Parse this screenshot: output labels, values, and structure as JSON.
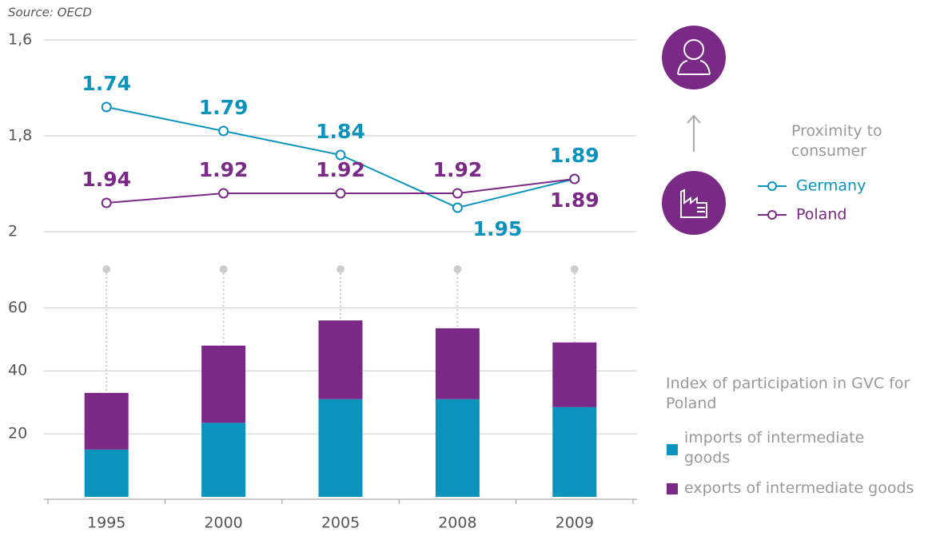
{
  "source": "Source: OECD",
  "chart_data": [
    {
      "type": "line",
      "invert_y": true,
      "legend_title": "Proximity to consumer",
      "ylim": [
        1.6,
        2
      ],
      "yticks": [
        {
          "value": 1.6,
          "label": "1,6"
        },
        {
          "value": 1.8,
          "label": "1,8"
        },
        2
      ],
      "grid": true,
      "series": [
        {
          "name": "Germany",
          "color": "#0b93bd",
          "values": [
            1.74,
            1.79,
            1.84,
            1.95,
            1.89
          ]
        },
        {
          "name": "Poland",
          "color": "#7a2a86",
          "values": [
            1.94,
            1.92,
            1.92,
            1.92,
            1.89
          ]
        }
      ]
    },
    {
      "type": "stacked_bar",
      "legend_title": "Index of participation in GVC for Poland",
      "categories": [
        "1995",
        "2000",
        "2005",
        "2008",
        "2009"
      ],
      "ylim": [
        0,
        72
      ],
      "yticks": [
        20,
        40,
        60
      ],
      "grid": true,
      "series": [
        {
          "name": "imports of intermediate goods",
          "color": "#0b93bd",
          "values": [
            15,
            23.5,
            31,
            31,
            28.5
          ]
        },
        {
          "name": "exports of intermediate goods",
          "color": "#7a2a86",
          "values": [
            18,
            24.5,
            25,
            22.5,
            20.5
          ]
        }
      ]
    }
  ]
}
